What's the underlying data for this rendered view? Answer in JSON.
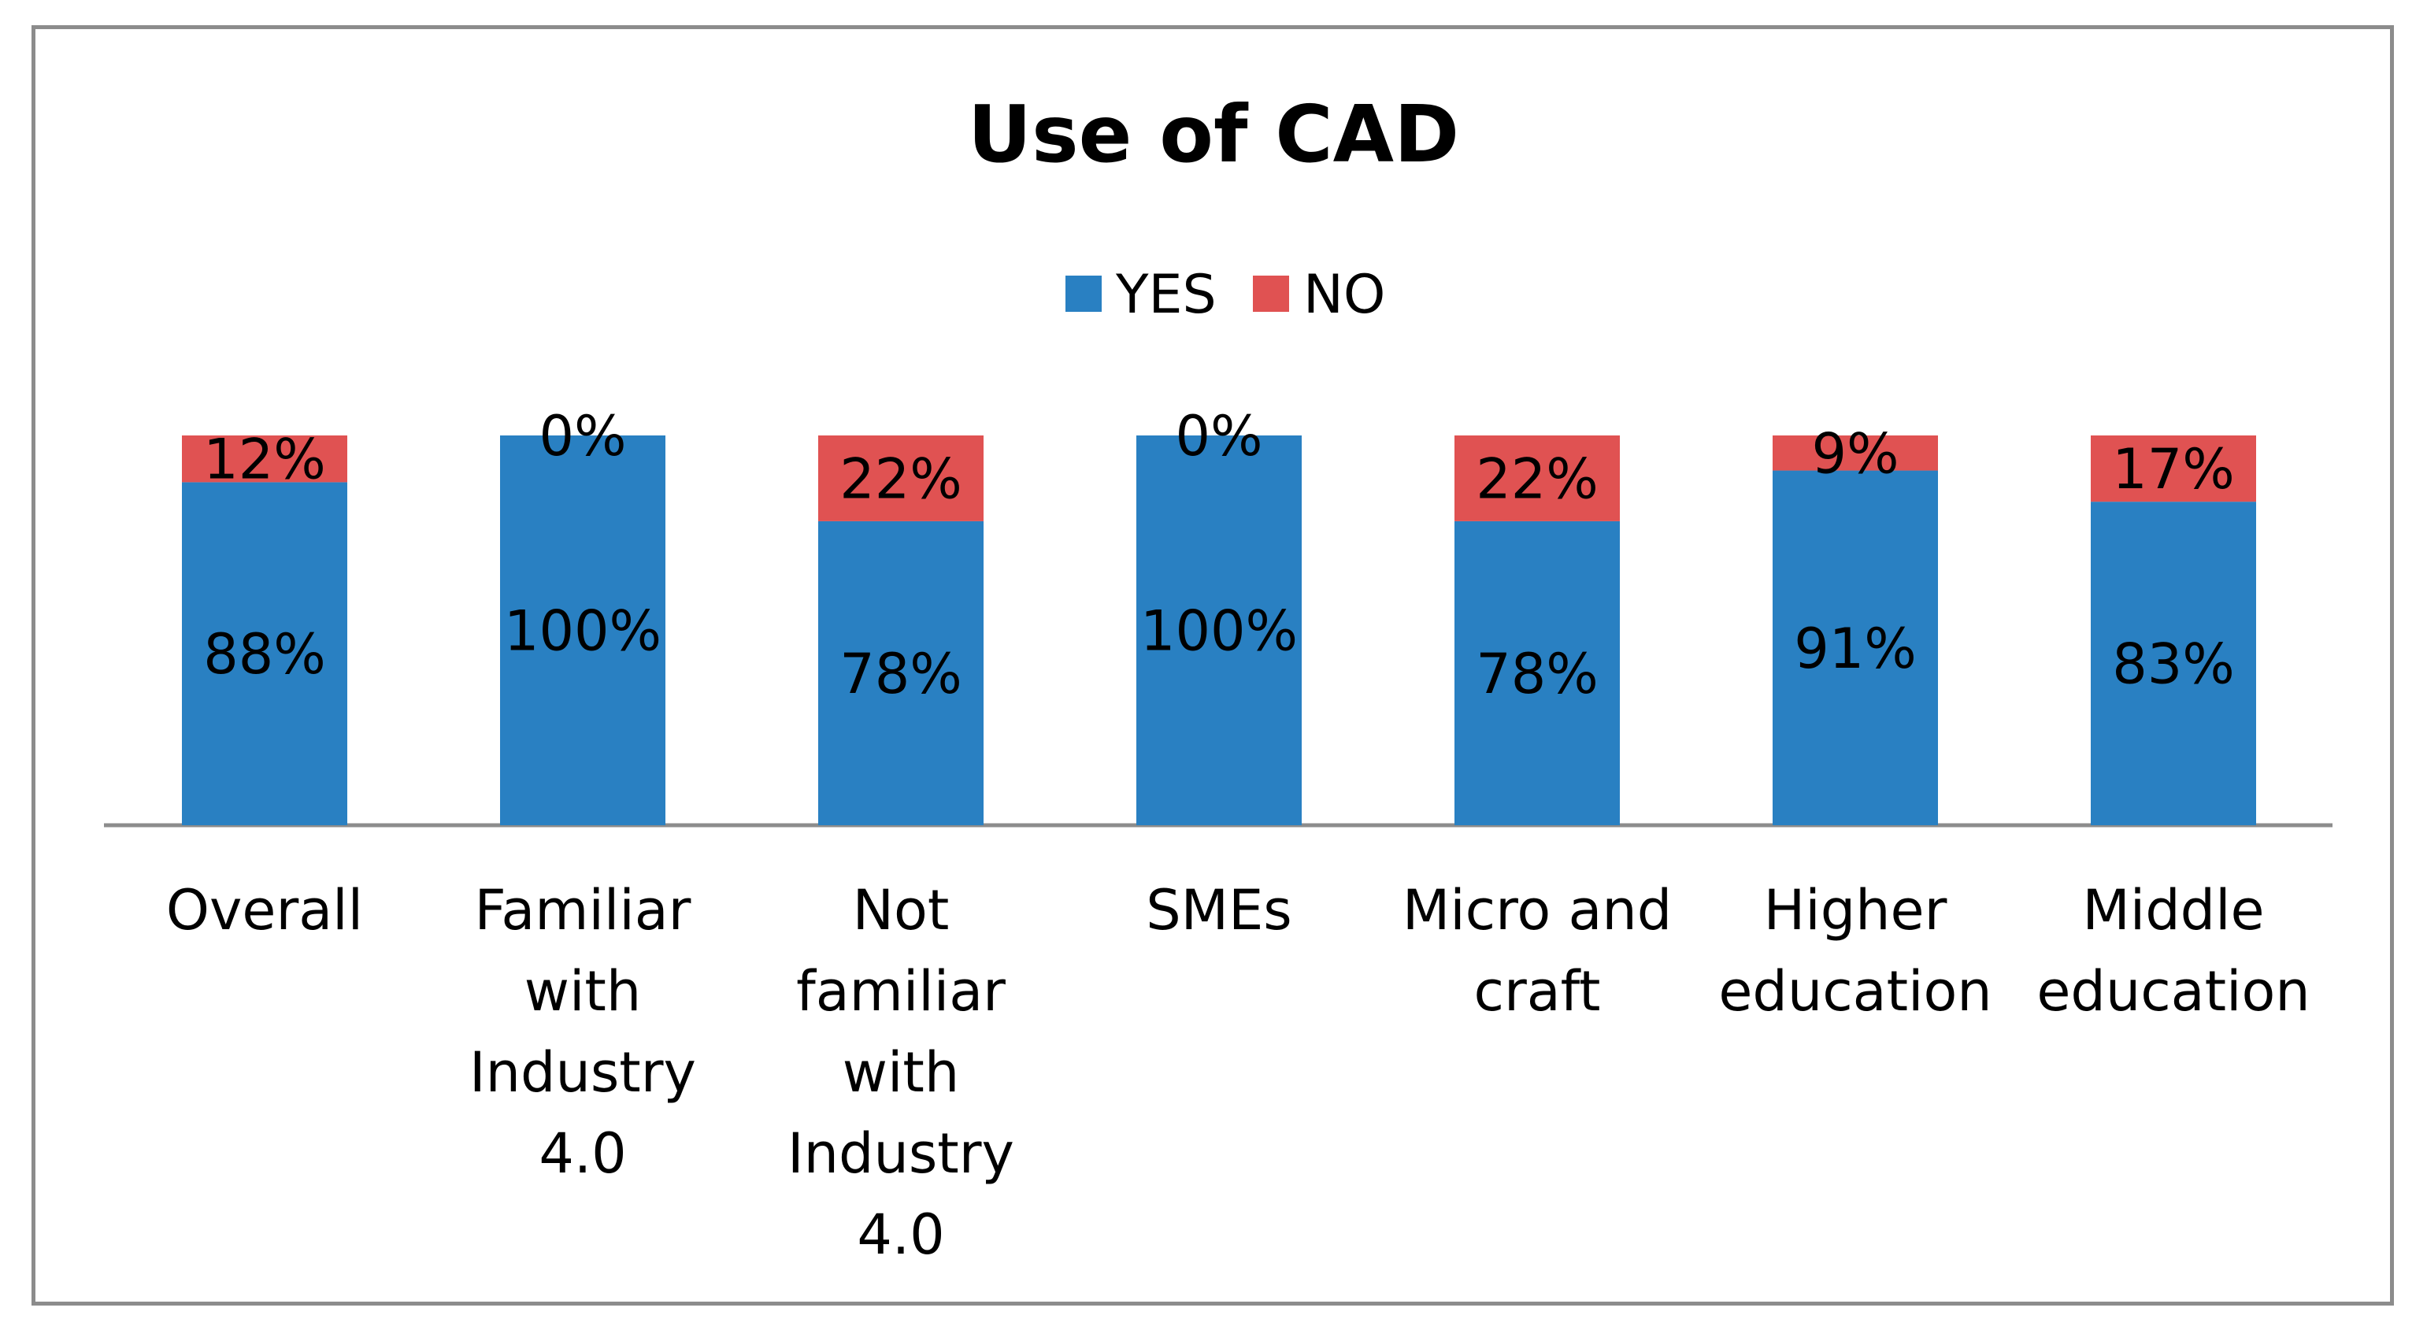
{
  "chart_data": {
    "type": "bar",
    "stacked": true,
    "title": "Use of CAD",
    "categories": [
      [
        "Overall"
      ],
      [
        "Familiar",
        "with",
        "Industry",
        "4.0"
      ],
      [
        "Not",
        "familiar",
        "with",
        "Industry",
        "4.0"
      ],
      [
        "SMEs"
      ],
      [
        "Micro and",
        "craft"
      ],
      [
        "Higher",
        "education"
      ],
      [
        "Middle",
        "education"
      ]
    ],
    "series": [
      {
        "name": "YES",
        "color": "#2980c2",
        "values": [
          88,
          100,
          78,
          100,
          78,
          91,
          83
        ],
        "labels": [
          "88%",
          "100%",
          "78%",
          "100%",
          "78%",
          "91%",
          "83%"
        ]
      },
      {
        "name": "NO",
        "color": "#e05252",
        "values": [
          12,
          0,
          22,
          0,
          22,
          9,
          17
        ],
        "labels": [
          "12%",
          "0%",
          "22%",
          "0%",
          "22%",
          "9%",
          "17%"
        ]
      }
    ],
    "ylim": [
      0,
      100
    ],
    "legend_position": "top-center",
    "grid": false,
    "xlabel": "",
    "ylabel": ""
  }
}
